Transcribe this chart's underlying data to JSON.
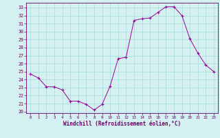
{
  "hours": [
    0,
    1,
    2,
    3,
    4,
    5,
    6,
    7,
    8,
    9,
    10,
    11,
    12,
    13,
    14,
    15,
    16,
    17,
    18,
    19,
    20,
    21,
    22,
    23
  ],
  "values": [
    24.7,
    24.2,
    23.1,
    23.1,
    22.7,
    21.3,
    21.3,
    20.9,
    20.2,
    20.9,
    23.2,
    26.6,
    26.8,
    31.4,
    31.6,
    31.7,
    32.4,
    33.1,
    33.1,
    32.0,
    29.1,
    27.3,
    25.8,
    25.0
  ],
  "line_color": "#990099",
  "marker": "+",
  "bg_color": "#d4f0f0",
  "grid_color": "#aadddd",
  "axis_color": "#660066",
  "ylabel_values": [
    20,
    21,
    22,
    23,
    24,
    25,
    26,
    27,
    28,
    29,
    30,
    31,
    32,
    33
  ],
  "xlabel": "Windchill (Refroidissement éolien,°C)",
  "ylim": [
    19.8,
    33.6
  ],
  "xlim": [
    -0.5,
    23.5
  ]
}
